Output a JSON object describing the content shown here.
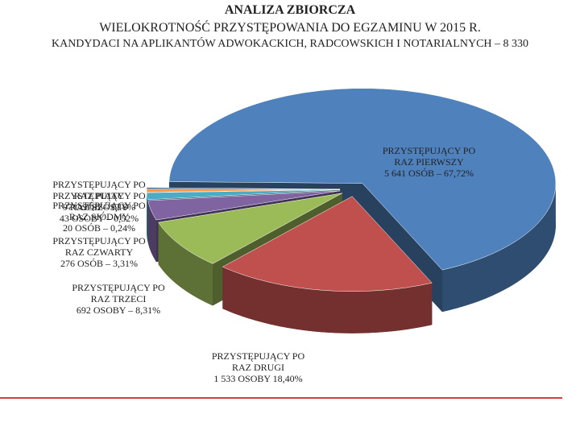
{
  "chart_data": {
    "type": "pie3d",
    "title": "ANALIZA ZBIORCZA",
    "subtitle": "WIELOKROTNOŚĆ PRZYSTĘPOWANIA DO EGZAMINU W 2015 R.",
    "caption": "KANDYDACI NA APLIKANTÓW ADWOKACKICH, RADCOWSKICH I NOTARIALNYCH – 8 330",
    "categories": [
      "PRZYSTĘPUJĄCY PO RAZ PIERWSZY",
      "PRZYSTĘPUJĄCY PO RAZ DRUGI",
      "PRZYSTĘPUJĄCY PO RAZ TRZECI",
      "PRZYSTĘPUJĄCY PO RAZ CZWARTY",
      "PRZYSTĘPUJĄCY PO RAZ PIĄTY",
      "PRZYSTĘPUJĄCY PO RAZ SZÓSTY",
      "PRZYSTĘPUJĄCY PO RAZ SIÓDMY"
    ],
    "values": [
      67.72,
      18.4,
      8.31,
      3.31,
      1.16,
      0.52,
      0.24
    ],
    "value_labels": [
      "5 641 OSÓB – 67,72%",
      "1 533 OSOBY 18,40%",
      "692 OSOBY – 8,31%",
      "276 OSÓB – 3,31%",
      "97 OSÓB – 1,16%",
      "43 OSOBY – 0,52%",
      "20 OSÓB – 0,24%"
    ],
    "colors": [
      "#4f81bd",
      "#c0504d",
      "#9bbb59",
      "#8064a2",
      "#4bacc6",
      "#f79646",
      "#2c4d75"
    ]
  }
}
